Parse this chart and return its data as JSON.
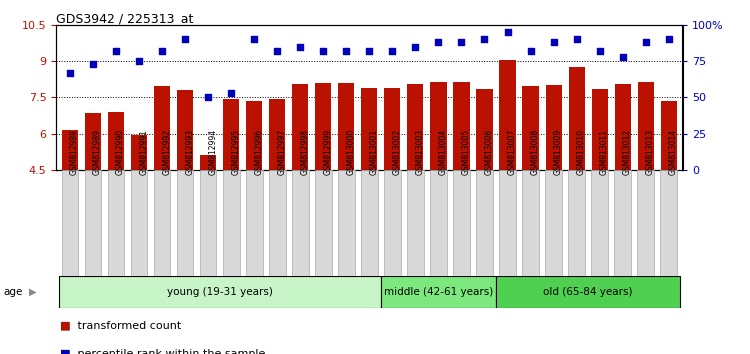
{
  "title": "GDS3942 / 225313_at",
  "samples": [
    "GSM812988",
    "GSM812989",
    "GSM812990",
    "GSM812991",
    "GSM812992",
    "GSM812993",
    "GSM812994",
    "GSM812995",
    "GSM812996",
    "GSM812997",
    "GSM812998",
    "GSM812999",
    "GSM813000",
    "GSM813001",
    "GSM813002",
    "GSM813003",
    "GSM813004",
    "GSM813005",
    "GSM813006",
    "GSM813007",
    "GSM813008",
    "GSM813009",
    "GSM813010",
    "GSM813011",
    "GSM813012",
    "GSM813013",
    "GSM813014"
  ],
  "transformed_count": [
    6.15,
    6.85,
    6.9,
    5.95,
    7.95,
    7.8,
    5.1,
    7.45,
    7.35,
    7.45,
    8.05,
    8.1,
    8.1,
    7.9,
    7.9,
    8.05,
    8.15,
    8.15,
    7.85,
    9.05,
    7.95,
    8.0,
    8.75,
    7.85,
    8.05,
    8.15,
    7.35
  ],
  "percentile_rank": [
    67,
    73,
    82,
    75,
    82,
    90,
    50,
    53,
    90,
    82,
    85,
    82,
    82,
    82,
    82,
    85,
    88,
    88,
    90,
    95,
    82,
    88,
    90,
    82,
    78,
    88,
    90
  ],
  "groups": [
    {
      "label": "young (19-31 years)",
      "start": 0,
      "end": 14,
      "color": "#c8f5c8"
    },
    {
      "label": "middle (42-61 years)",
      "start": 14,
      "end": 19,
      "color": "#7de87d"
    },
    {
      "label": "old (65-84 years)",
      "start": 19,
      "end": 27,
      "color": "#50d050"
    }
  ],
  "bar_color": "#bb1100",
  "dot_color": "#0000bb",
  "ylim_left": [
    4.5,
    10.5
  ],
  "ylim_right": [
    0,
    100
  ],
  "yticks_left": [
    4.5,
    6.0,
    7.5,
    9.0,
    10.5
  ],
  "yticks_right": [
    0,
    25,
    50,
    75,
    100
  ],
  "ytick_labels_left": [
    "4.5",
    "6",
    "7.5",
    "9",
    "10.5"
  ],
  "ytick_labels_right": [
    "0",
    "25",
    "50",
    "75",
    "100%"
  ],
  "hlines": [
    6.0,
    7.5,
    9.0
  ],
  "legend_items": [
    {
      "label": "transformed count",
      "color": "#bb1100"
    },
    {
      "label": "percentile rank within the sample",
      "color": "#0000bb"
    }
  ]
}
